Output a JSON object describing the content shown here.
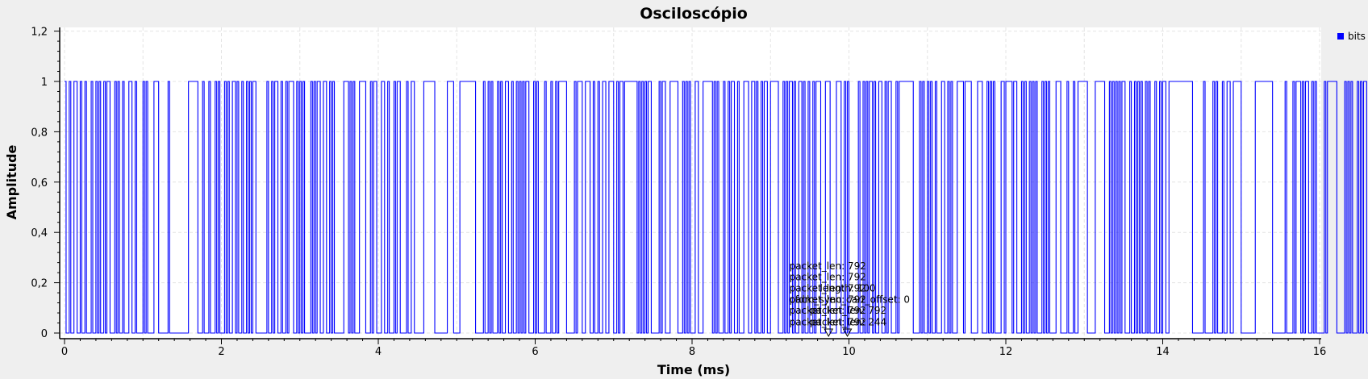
{
  "chart_data": {
    "type": "line",
    "title": "Osciloscópio",
    "xlabel": "Time (ms)",
    "ylabel": "Amplitude",
    "xlim": [
      0,
      16
    ],
    "ylim": [
      0,
      1.2
    ],
    "x_ticks": [
      "0",
      "2",
      "4",
      "6",
      "8",
      "10",
      "12",
      "14",
      "16"
    ],
    "y_ticks": [
      "0",
      "0,2",
      "0,4",
      "0,6",
      "0,8",
      "1",
      "1,2"
    ],
    "grid": true,
    "legend_position": "top-right",
    "series": [
      {
        "name": "bits",
        "color": "#0000ff",
        "step": true,
        "sample_period_ms": 0.02,
        "x_start_ms": 0,
        "values": [
          1,
          0,
          0,
          1,
          0,
          0,
          1,
          1,
          0,
          0,
          1,
          0,
          0,
          1,
          0,
          0,
          0,
          1,
          0,
          0,
          1,
          0,
          1,
          0,
          0,
          1,
          0,
          1,
          1,
          0,
          0,
          0,
          1,
          0,
          1,
          0,
          0,
          1,
          0,
          0,
          0,
          1,
          1,
          0,
          0,
          1,
          0,
          0,
          0,
          0,
          1,
          0,
          1,
          0,
          0,
          0,
          0,
          1,
          1,
          1,
          0,
          0,
          0,
          0,
          0,
          0,
          1,
          0,
          0,
          0,
          0,
          0,
          0,
          0,
          0,
          0,
          0,
          0,
          0,
          1,
          1,
          1,
          1,
          1,
          1,
          0,
          0,
          0,
          1,
          0,
          0,
          0,
          1,
          0,
          0,
          0,
          1,
          0,
          1,
          0,
          0,
          0,
          1,
          0,
          1,
          0,
          0,
          1,
          1,
          0,
          1,
          0,
          0,
          1,
          0,
          0,
          1,
          0,
          1,
          0,
          1,
          1,
          0,
          0,
          0,
          0,
          0,
          0,
          0,
          1,
          0,
          0,
          1,
          0,
          1,
          1,
          0,
          0,
          1,
          0,
          0,
          1,
          0,
          1,
          1,
          1,
          0,
          0,
          1,
          0,
          1,
          0,
          1,
          0,
          0,
          0,
          0,
          1,
          0,
          1,
          0,
          1,
          1,
          0,
          0,
          1,
          1,
          0,
          0,
          1,
          0,
          1,
          0,
          0,
          0,
          0,
          0,
          0,
          1,
          1,
          1,
          0,
          1,
          0,
          1,
          0,
          0,
          0,
          1,
          1,
          1,
          1,
          0,
          0,
          0,
          1,
          0,
          1,
          1,
          0,
          0,
          0,
          1,
          1,
          0,
          0,
          1,
          0,
          0,
          0,
          1,
          0,
          1,
          1,
          0,
          0,
          0,
          0,
          1,
          0,
          0,
          1,
          1,
          0,
          0,
          0,
          0,
          0,
          0,
          1,
          1,
          1,
          1,
          1,
          1,
          1,
          0,
          0,
          0,
          0,
          0,
          0,
          0,
          0,
          1,
          1,
          1,
          1,
          0,
          0,
          0,
          0,
          1,
          1,
          1,
          1,
          1,
          1,
          1,
          1,
          1,
          1,
          0,
          0,
          0,
          0,
          0,
          1,
          0,
          0,
          1,
          0,
          1,
          0,
          0,
          0,
          1,
          0,
          1,
          0,
          0,
          1,
          1,
          0,
          0,
          1,
          0,
          0,
          1,
          0,
          1,
          0,
          1,
          0,
          1,
          1,
          0,
          0,
          0,
          1,
          0,
          1,
          0,
          0,
          0,
          0,
          1,
          0,
          0,
          0,
          1,
          0,
          0,
          1,
          0,
          1,
          1,
          1,
          1,
          1,
          0,
          0,
          0,
          0,
          0,
          1,
          0,
          1,
          1,
          1,
          0,
          0,
          1,
          1,
          1,
          0,
          0,
          1,
          0,
          0,
          1,
          0,
          0,
          1,
          1,
          0,
          0,
          1,
          1,
          1,
          0,
          0,
          1,
          0,
          1,
          1,
          0,
          1,
          1,
          1,
          1,
          1,
          1,
          1,
          1,
          0,
          1,
          0,
          1,
          0,
          1,
          0,
          1,
          1,
          0,
          0,
          0,
          0,
          0,
          1,
          0,
          1,
          1,
          0,
          0,
          0,
          1,
          1,
          1,
          1,
          1,
          0,
          0,
          0,
          1,
          0,
          1,
          0,
          1,
          0,
          0,
          0,
          1,
          1,
          0,
          0,
          0,
          1,
          1,
          1,
          1,
          1,
          1,
          0,
          1,
          0,
          1,
          0,
          0,
          0,
          1,
          0,
          0,
          1,
          0,
          1,
          1,
          0,
          0,
          1,
          0,
          0,
          0,
          1,
          1,
          1,
          0,
          0,
          1,
          1,
          0,
          1,
          0,
          0,
          1,
          0,
          1,
          1,
          0,
          0,
          1,
          1,
          1,
          1,
          1,
          0,
          0,
          0,
          1,
          0,
          1,
          0,
          1,
          1,
          0,
          1,
          0,
          0,
          1,
          1,
          0,
          1,
          0,
          0,
          1,
          0,
          0,
          1,
          0,
          1,
          1,
          1,
          0,
          0,
          0,
          1,
          1,
          1,
          0,
          0,
          0,
          0,
          1,
          1,
          1,
          0,
          0,
          1,
          0,
          1,
          0,
          0,
          0,
          0,
          0,
          0,
          1,
          0,
          0,
          1,
          0,
          1,
          0,
          1,
          1,
          0,
          1,
          0,
          0,
          1,
          1,
          0,
          0,
          1,
          0,
          1,
          1,
          0,
          0,
          0,
          1,
          0,
          1,
          1,
          1,
          1,
          1,
          1,
          1,
          1,
          1,
          0,
          0,
          0,
          0,
          1,
          0,
          1,
          0,
          0,
          1,
          0,
          1,
          0,
          0,
          1,
          0,
          0,
          0,
          1,
          1,
          0,
          0,
          1,
          0,
          1,
          0,
          0,
          0,
          1,
          1,
          1,
          1,
          0,
          1,
          1,
          1,
          1,
          0,
          0,
          0,
          0,
          1,
          1,
          1,
          0,
          0,
          0,
          1,
          0,
          1,
          0,
          1,
          0,
          0,
          0,
          0,
          1,
          1,
          0,
          1,
          1,
          1,
          1,
          0,
          1,
          1,
          0,
          0,
          0,
          1,
          0,
          1,
          0,
          0,
          1,
          0,
          1,
          0,
          1,
          0,
          0,
          0,
          1,
          0,
          1,
          0,
          1,
          0,
          0,
          0,
          0,
          1,
          1,
          1,
          0,
          0,
          0,
          0,
          1,
          0,
          0,
          0,
          1,
          0,
          0,
          1,
          1,
          1,
          1,
          1,
          1,
          0,
          0,
          0,
          0,
          0,
          1,
          1,
          1,
          1,
          1,
          1,
          0,
          0,
          0,
          1,
          0,
          1,
          0,
          1,
          0,
          1,
          0,
          1,
          1,
          0,
          0,
          0,
          1,
          0,
          0,
          1,
          0,
          1,
          0,
          1,
          0,
          0,
          1,
          0,
          1,
          0,
          0,
          0,
          1,
          0,
          0,
          1,
          0,
          1,
          1,
          0,
          0,
          1,
          1,
          1,
          1,
          1,
          1,
          1,
          1,
          1,
          1,
          1,
          1,
          1,
          1,
          1,
          0,
          0,
          0,
          0,
          0,
          0,
          0,
          1,
          0,
          0,
          0,
          0,
          0,
          1,
          0,
          1,
          0,
          0,
          0,
          1,
          0,
          0,
          1,
          1,
          0,
          0,
          1,
          1,
          1,
          1,
          1,
          0,
          0,
          0,
          0,
          0,
          0,
          0,
          0,
          0,
          1,
          1,
          1,
          1,
          1,
          1,
          1,
          1,
          1,
          1,
          1,
          0,
          0,
          0,
          0,
          0,
          0,
          0,
          0,
          1,
          0,
          0,
          0,
          0,
          1,
          0,
          1,
          1,
          1,
          0,
          1,
          0,
          1,
          1,
          0,
          0,
          1,
          0,
          1,
          0,
          0,
          0,
          0,
          0,
          1,
          0,
          1,
          1,
          1,
          1,
          1,
          1,
          0,
          0,
          0,
          0,
          0,
          1,
          0,
          1,
          0,
          1,
          0,
          0,
          0,
          1,
          0,
          1,
          0,
          1,
          1,
          0,
          0,
          0,
          1,
          0,
          1,
          1,
          1,
          0,
          0,
          1,
          0,
          0,
          1
        ]
      }
    ],
    "annotations": [
      {
        "text": "packet_len: 792",
        "x": 9.24,
        "y": 0.266
      },
      {
        "text": "packet_len: 792",
        "x": 9.24,
        "y": 0.222
      },
      {
        "text": "packet_len: 792",
        "x": 9.24,
        "y": 0.178
      },
      {
        "text": "length: 100",
        "x": 9.63,
        "y": 0.178
      },
      {
        "text": "packet_len: 792",
        "x": 9.24,
        "y": 0.133
      },
      {
        "text": "ofdm_sync_carr_offset: 0",
        "x": 9.24,
        "y": 0.133
      },
      {
        "text": "packet_len: 792",
        "x": 9.24,
        "y": 0.089
      },
      {
        "text": "packet_len: 792",
        "x": 9.5,
        "y": 0.089
      },
      {
        "text": "packet_len: 792",
        "x": 9.24,
        "y": 0.044
      },
      {
        "text": "packet_len: 244",
        "x": 9.5,
        "y": 0.044
      }
    ],
    "tag_markers": [
      9.74,
      9.98
    ]
  }
}
